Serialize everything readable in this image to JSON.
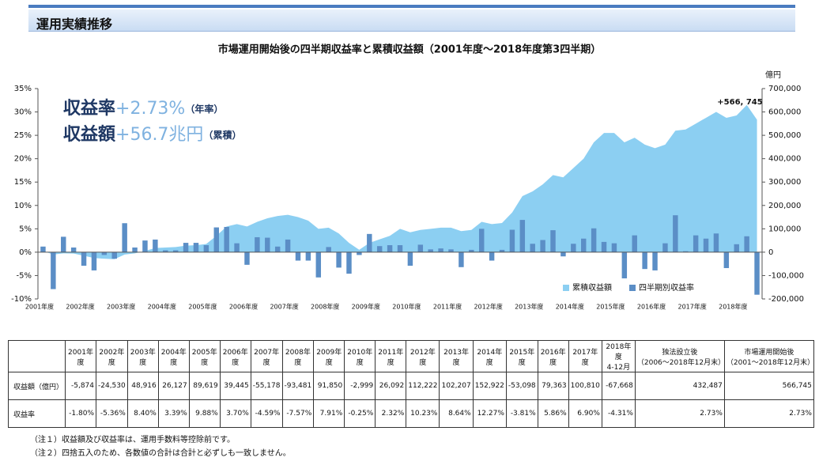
{
  "header": {
    "title": "運用実績推移"
  },
  "chart_data": {
    "type": "combo",
    "title": "市場運用開始後の四半期収益率と累積収益額（2001年度～2018年度第3四半期）",
    "y2_label": "億円",
    "annotations": [
      {
        "label": "収益率",
        "value": "+2.73%",
        "note": "（年率）"
      },
      {
        "label": "収益額",
        "value": "+56.7兆円",
        "note": "（累積）"
      }
    ],
    "end_label": "+566, 745",
    "categories": [
      "2001年度",
      null,
      null,
      null,
      "2002年度",
      null,
      null,
      null,
      "2003年度",
      null,
      null,
      null,
      "2004年度",
      null,
      null,
      null,
      "2005年度",
      null,
      null,
      null,
      "2006年度",
      null,
      null,
      null,
      "2007年度",
      null,
      null,
      null,
      "2008年度",
      null,
      null,
      null,
      "2009年度",
      null,
      null,
      null,
      "2010年度",
      null,
      null,
      null,
      "2011年度",
      null,
      null,
      null,
      "2012年度",
      null,
      null,
      null,
      "2013年度",
      null,
      null,
      null,
      "2014年度",
      null,
      null,
      null,
      "2015年度",
      null,
      null,
      null,
      "2016年度",
      null,
      null,
      null,
      "2017年度",
      null,
      null,
      null,
      "2018年度",
      null,
      null
    ],
    "series": [
      {
        "name": "累積収益額",
        "type": "area",
        "axis": "y2",
        "color": "#8ccff2",
        "values": [
          5000,
          -10000,
          -5000,
          -6000,
          -15000,
          -25000,
          -28000,
          -30000,
          -10000,
          -5000,
          5000,
          18000,
          20000,
          22000,
          28000,
          30000,
          35000,
          70000,
          110000,
          120000,
          110000,
          130000,
          145000,
          155000,
          160000,
          150000,
          135000,
          100000,
          105000,
          80000,
          40000,
          10000,
          40000,
          55000,
          70000,
          100000,
          85000,
          95000,
          100000,
          105000,
          105000,
          90000,
          95000,
          130000,
          120000,
          125000,
          170000,
          240000,
          260000,
          290000,
          330000,
          320000,
          360000,
          400000,
          470000,
          510000,
          510000,
          470000,
          490000,
          460000,
          445000,
          460000,
          520000,
          525000,
          550000,
          575000,
          600000,
          575000,
          585000,
          630000,
          566745
        ]
      },
      {
        "name": "四半期別収益率",
        "type": "bar",
        "color": "#5b8ec6",
        "values": [
          1.2,
          -7.9,
          3.3,
          1.0,
          -2.9,
          -3.9,
          -0.6,
          -1.4,
          6.2,
          1.0,
          2.5,
          2.7,
          0.4,
          0.4,
          2.0,
          2.0,
          1.5,
          5.3,
          5.4,
          1.9,
          -2.7,
          3.2,
          3.1,
          1.2,
          2.7,
          -1.8,
          -1.8,
          -5.4,
          1.1,
          -3.3,
          -4.6,
          -0.6,
          3.9,
          1.3,
          1.5,
          1.5,
          -2.9,
          1.6,
          0.6,
          0.8,
          0.6,
          -3.2,
          0.5,
          5.0,
          -1.8,
          0.5,
          4.8,
          6.9,
          1.8,
          2.6,
          4.7,
          -0.9,
          1.8,
          2.9,
          5.1,
          2.2,
          1.9,
          -5.6,
          3.6,
          -3.6,
          -3.9,
          1.9,
          7.9,
          0.2,
          3.6,
          2.9,
          4.0,
          -3.4,
          1.7,
          3.4,
          -9.1
        ]
      }
    ],
    "ylim": [
      -10,
      35
    ],
    "yticks": [
      {
        "value": -10,
        "label": "-10%"
      },
      {
        "value": -5,
        "label": "-5%"
      },
      {
        "value": 0,
        "label": "0%"
      },
      {
        "value": 5,
        "label": "5%"
      },
      {
        "value": 10,
        "label": "10%"
      },
      {
        "value": 15,
        "label": "15%"
      },
      {
        "value": 20,
        "label": "20%"
      },
      {
        "value": 25,
        "label": "25%"
      },
      {
        "value": 30,
        "label": "30%"
      },
      {
        "value": 35,
        "label": "35%"
      }
    ],
    "y2lim": [
      -200000,
      700000
    ],
    "y2ticks": [
      {
        "value": -200000,
        "label": "-200,000"
      },
      {
        "value": -100000,
        "label": "-100,000"
      },
      0,
      {
        "value": 100000,
        "label": "100,000"
      },
      {
        "value": 200000,
        "label": "200,000"
      },
      {
        "value": 300000,
        "label": "300,000"
      },
      {
        "value": 400000,
        "label": "400,000"
      },
      {
        "value": 500000,
        "label": "500,000"
      },
      {
        "value": 600000,
        "label": "600,000"
      },
      {
        "value": 700000,
        "label": "700,000"
      }
    ],
    "legend": "lower-right"
  },
  "table": {
    "header": [
      "2001年度",
      "2002年度",
      "2003年度",
      "2004年度",
      "2005年度",
      "2006年度",
      "2007年度",
      "2008年度",
      "2009年度",
      "2010年度",
      "2011年度",
      "2012年度",
      "2013年度",
      "2014年度",
      "2015年度",
      "2016年度",
      "2017年度",
      "2018年度\n4-12月",
      "独法設立後\n（2006～2018年12月末）",
      "市場運用開始後\n（2001～2018年12月末）"
    ],
    "rows": [
      {
        "label": "収益額（億円）",
        "cells": [
          "-5,874",
          "-24,530",
          "48,916",
          "26,127",
          "89,619",
          "39,445",
          "-55,178",
          "-93,481",
          "91,850",
          "-2,999",
          "26,092",
          "112,222",
          "102,207",
          "152,922",
          "-53,098",
          "79,363",
          "100,810",
          "-67,668",
          "432,487",
          "566,745"
        ]
      },
      {
        "label": "収益率",
        "cells": [
          "-1.80%",
          "-5.36%",
          "8.40%",
          "3.39%",
          "9.88%",
          "3.70%",
          "-4.59%",
          "-7.57%",
          "7.91%",
          "-0.25%",
          "2.32%",
          "10.23%",
          "8.64%",
          "12.27%",
          "-3.81%",
          "5.86%",
          "6.90%",
          "-4.31%",
          "2.73%",
          "2.73%"
        ]
      }
    ]
  },
  "notes": [
    "（注１）収益額及び収益率は、運用手数料等控除前です。",
    "（注２）四捨五入のため、各数値の合計は合計と必ずしも一致しません。"
  ]
}
